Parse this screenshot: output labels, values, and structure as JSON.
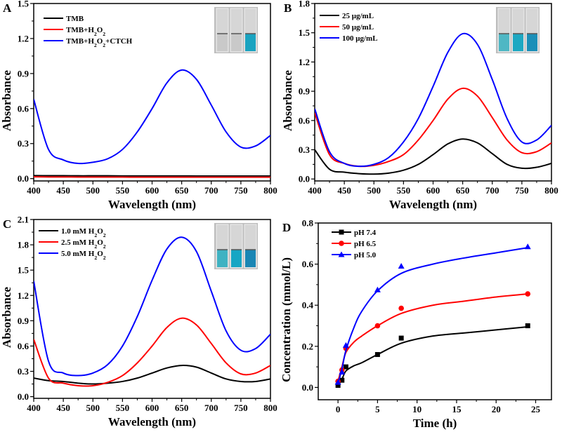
{
  "chart_data": [
    {
      "type": "line",
      "panel_label": "A",
      "xlabel": "Wavelength (nm)",
      "ylabel": "Absorbance",
      "xlim": [
        400,
        800
      ],
      "ylim": [
        -0.02,
        1.5
      ],
      "xticks": [
        400,
        450,
        500,
        550,
        600,
        650,
        700,
        750,
        800
      ],
      "yticks": [
        0.0,
        0.3,
        0.6,
        0.9,
        1.2,
        1.5
      ],
      "ytick_labels": [
        "0.0",
        "0.3",
        "0.6",
        "0.9",
        "1.2",
        "1.5"
      ],
      "inset_colors": [
        "#c9c9c9",
        "#c9c9c9",
        "#1aa3c0"
      ],
      "x": [
        400,
        425,
        450,
        475,
        500,
        525,
        550,
        575,
        600,
        625,
        650,
        675,
        700,
        725,
        750,
        775,
        800
      ],
      "series": [
        {
          "name": "TMB",
          "label": [
            {
              "t": "TMB"
            }
          ],
          "color": "#000000",
          "values": [
            0.026,
            0.025,
            0.025,
            0.024,
            0.024,
            0.024,
            0.023,
            0.023,
            0.023,
            0.023,
            0.023,
            0.022,
            0.022,
            0.022,
            0.022,
            0.022,
            0.022
          ]
        },
        {
          "name": "TMB+H2O2",
          "label": [
            {
              "t": "TMB+H"
            },
            {
              "t": "2",
              "sub": true
            },
            {
              "t": "O"
            },
            {
              "t": "2",
              "sub": true
            }
          ],
          "color": "#ff0000",
          "values": [
            0.015,
            0.014,
            0.014,
            0.013,
            0.013,
            0.013,
            0.013,
            0.012,
            0.012,
            0.012,
            0.012,
            0.012,
            0.012,
            0.012,
            0.012,
            0.012,
            0.012
          ]
        },
        {
          "name": "TMB+H2O2+CTCH",
          "label": [
            {
              "t": "TMB+H"
            },
            {
              "t": "2",
              "sub": true
            },
            {
              "t": "O"
            },
            {
              "t": "2",
              "sub": true
            },
            {
              "t": "+CTCH"
            }
          ],
          "color": "#0000ff",
          "values": [
            0.68,
            0.25,
            0.16,
            0.13,
            0.14,
            0.17,
            0.25,
            0.4,
            0.6,
            0.82,
            0.93,
            0.85,
            0.63,
            0.4,
            0.27,
            0.28,
            0.37
          ]
        }
      ]
    },
    {
      "type": "line",
      "panel_label": "B",
      "xlabel": "Wavelength (nm)",
      "ylabel": "Absorbance",
      "xlim": [
        400,
        800
      ],
      "ylim": [
        -0.02,
        1.8
      ],
      "xticks": [
        400,
        450,
        500,
        550,
        600,
        650,
        700,
        750,
        800
      ],
      "yticks": [
        0.0,
        0.3,
        0.6,
        0.9,
        1.2,
        1.5,
        1.8
      ],
      "ytick_labels": [
        "0.0",
        "0.3",
        "0.6",
        "0.9",
        "1.2",
        "1.5",
        "1.8"
      ],
      "inset_colors": [
        "#4fb7c4",
        "#1ea8c2",
        "#1b8fb8"
      ],
      "x": [
        400,
        425,
        450,
        475,
        500,
        525,
        550,
        575,
        600,
        625,
        650,
        675,
        700,
        725,
        750,
        775,
        800
      ],
      "series": [
        {
          "name": "25 μg/mL",
          "label": [
            {
              "t": "25 μg/mL"
            }
          ],
          "color": "#000000",
          "values": [
            0.3,
            0.1,
            0.07,
            0.055,
            0.05,
            0.06,
            0.09,
            0.15,
            0.25,
            0.36,
            0.41,
            0.37,
            0.26,
            0.15,
            0.11,
            0.12,
            0.16
          ]
        },
        {
          "name": "50 μg/mL",
          "label": [
            {
              "t": "50 μg/mL"
            }
          ],
          "color": "#ff0000",
          "values": [
            0.68,
            0.25,
            0.16,
            0.13,
            0.14,
            0.18,
            0.25,
            0.4,
            0.6,
            0.82,
            0.93,
            0.85,
            0.63,
            0.4,
            0.27,
            0.28,
            0.37
          ]
        },
        {
          "name": "100 μg/mL",
          "label": [
            {
              "t": "100 μg/mL"
            }
          ],
          "color": "#0000ff",
          "values": [
            0.72,
            0.28,
            0.16,
            0.13,
            0.15,
            0.22,
            0.38,
            0.62,
            0.95,
            1.3,
            1.49,
            1.38,
            1.02,
            0.62,
            0.38,
            0.4,
            0.55
          ]
        }
      ]
    },
    {
      "type": "line",
      "panel_label": "C",
      "xlabel": "Wavelength (nm)",
      "ylabel": "Absorbance",
      "xlim": [
        400,
        800
      ],
      "ylim": [
        -0.02,
        2.1
      ],
      "xticks": [
        400,
        450,
        500,
        550,
        600,
        650,
        700,
        750,
        800
      ],
      "yticks": [
        0.0,
        0.3,
        0.6,
        0.9,
        1.2,
        1.5,
        1.8,
        2.1
      ],
      "ytick_labels": [
        "0.0",
        "0.3",
        "0.6",
        "0.9",
        "1.2",
        "1.5",
        "1.8",
        "2.1"
      ],
      "inset_colors": [
        "#3fb2c2",
        "#16a6c4",
        "#1a86b4"
      ],
      "x": [
        400,
        425,
        450,
        475,
        500,
        525,
        550,
        575,
        600,
        625,
        650,
        675,
        700,
        725,
        750,
        775,
        800
      ],
      "series": [
        {
          "name": "1.0 mM H2O2",
          "label": [
            {
              "t": "1.0 mM H"
            },
            {
              "t": "2",
              "sub": true
            },
            {
              "t": "O"
            },
            {
              "t": "2",
              "sub": true
            }
          ],
          "color": "#000000",
          "values": [
            0.22,
            0.19,
            0.18,
            0.16,
            0.15,
            0.16,
            0.18,
            0.22,
            0.28,
            0.34,
            0.37,
            0.35,
            0.28,
            0.21,
            0.18,
            0.18,
            0.21
          ]
        },
        {
          "name": "2.5 mM H2O2",
          "label": [
            {
              "t": "2.5 mM H"
            },
            {
              "t": "2",
              "sub": true
            },
            {
              "t": "O"
            },
            {
              "t": "2",
              "sub": true
            }
          ],
          "color": "#ff0000",
          "values": [
            0.68,
            0.22,
            0.16,
            0.13,
            0.13,
            0.17,
            0.25,
            0.4,
            0.6,
            0.82,
            0.93,
            0.85,
            0.63,
            0.4,
            0.27,
            0.28,
            0.37
          ]
        },
        {
          "name": "5.0 mM H2O2",
          "label": [
            {
              "t": "5.0 mM H"
            },
            {
              "t": "2",
              "sub": true
            },
            {
              "t": "O"
            },
            {
              "t": "2",
              "sub": true
            }
          ],
          "color": "#0000ff",
          "values": [
            1.37,
            0.42,
            0.28,
            0.25,
            0.28,
            0.38,
            0.6,
            0.95,
            1.38,
            1.75,
            1.89,
            1.72,
            1.25,
            0.78,
            0.55,
            0.57,
            0.74
          ]
        }
      ]
    },
    {
      "type": "scatter",
      "panel_label": "D",
      "xlabel": "Time (h)",
      "ylabel": "Concentration (mmol/L)",
      "xlim": [
        -2.5,
        27
      ],
      "ylim": [
        -0.06,
        0.8
      ],
      "xticks": [
        0,
        5,
        10,
        15,
        20,
        25
      ],
      "yticks": [
        0.0,
        0.2,
        0.4,
        0.6,
        0.8
      ],
      "ytick_labels": [
        "0.0",
        "0.2",
        "0.4",
        "0.6",
        "0.8"
      ],
      "x": [
        0,
        0.5,
        1,
        5,
        8,
        24
      ],
      "fit_x": [
        0,
        0.5,
        1,
        2,
        3,
        5,
        8,
        12,
        16,
        20,
        24
      ],
      "series": [
        {
          "name": "pH 7.4",
          "label": [
            {
              "t": "pH 7.4"
            }
          ],
          "color": "#000000",
          "marker": "square",
          "values": [
            0.01,
            0.035,
            0.1,
            0.16,
            0.24,
            0.3
          ],
          "fit": [
            0.01,
            0.04,
            0.08,
            0.105,
            0.12,
            0.16,
            0.215,
            0.25,
            0.265,
            0.28,
            0.295
          ]
        },
        {
          "name": "pH 6.5",
          "label": [
            {
              "t": "pH 6.5"
            }
          ],
          "color": "#ff0000",
          "marker": "circle",
          "values": [
            0.03,
            0.085,
            0.19,
            0.3,
            0.385,
            0.455
          ],
          "fit": [
            0.03,
            0.1,
            0.17,
            0.22,
            0.25,
            0.3,
            0.36,
            0.4,
            0.42,
            0.44,
            0.455
          ]
        },
        {
          "name": "pH 5.0",
          "label": [
            {
              "t": "pH 5.0"
            }
          ],
          "color": "#0000ff",
          "marker": "triangle",
          "values": [
            0.025,
            0.075,
            0.205,
            0.475,
            0.59,
            0.685
          ],
          "fit": [
            0.02,
            0.09,
            0.18,
            0.29,
            0.37,
            0.47,
            0.555,
            0.6,
            0.63,
            0.655,
            0.68
          ]
        }
      ]
    }
  ]
}
